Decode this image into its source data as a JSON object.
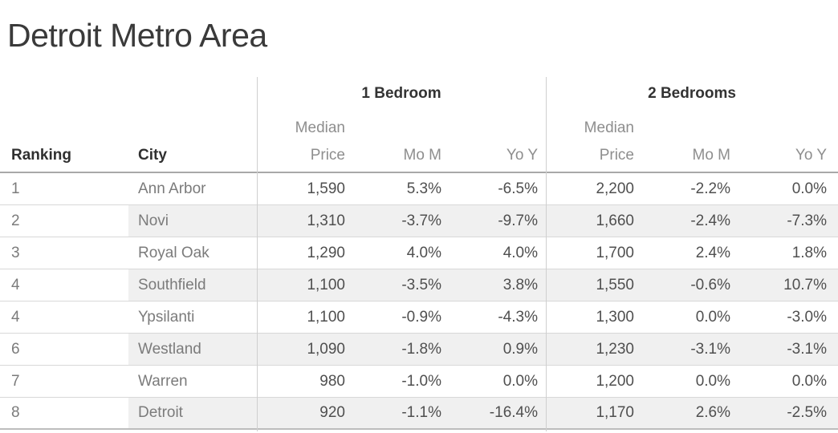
{
  "title": "Detroit Metro Area",
  "colors": {
    "title_text": "#3a3a3a",
    "header_dark_text": "#2f2f2f",
    "header_light_text": "#8e8e8e",
    "label_text": "#7b7b7b",
    "value_text": "#4f4f4f",
    "row_band": "#f0f0f0",
    "header_rule": "#a8a8a8",
    "row_rule": "#d8d8d8",
    "column_divider": "#cfcfcf"
  },
  "table": {
    "group_headers": [
      {
        "label": "1 Bedroom"
      },
      {
        "label": "2 Bedrooms"
      }
    ],
    "row_headers": {
      "ranking": "Ranking",
      "city": "City"
    },
    "sub_headers": {
      "median1": "Median",
      "median2": "Price",
      "mom": "Mo M",
      "yoy": "Yo Y"
    },
    "rows": [
      {
        "ranking": "1",
        "city": "Ann Arbor",
        "br1": {
          "price": "1,590",
          "mom": "5.3%",
          "yoy": "-6.5%"
        },
        "br2": {
          "price": "2,200",
          "mom": "-2.2%",
          "yoy": "0.0%"
        }
      },
      {
        "ranking": "2",
        "city": "Novi",
        "br1": {
          "price": "1,310",
          "mom": "-3.7%",
          "yoy": "-9.7%"
        },
        "br2": {
          "price": "1,660",
          "mom": "-2.4%",
          "yoy": "-7.3%"
        }
      },
      {
        "ranking": "3",
        "city": "Royal Oak",
        "br1": {
          "price": "1,290",
          "mom": "4.0%",
          "yoy": "4.0%"
        },
        "br2": {
          "price": "1,700",
          "mom": "2.4%",
          "yoy": "1.8%"
        }
      },
      {
        "ranking": "4",
        "city": "Southfield",
        "br1": {
          "price": "1,100",
          "mom": "-3.5%",
          "yoy": "3.8%"
        },
        "br2": {
          "price": "1,550",
          "mom": "-0.6%",
          "yoy": "10.7%"
        }
      },
      {
        "ranking": "4",
        "city": "Ypsilanti",
        "br1": {
          "price": "1,100",
          "mom": "-0.9%",
          "yoy": "-4.3%"
        },
        "br2": {
          "price": "1,300",
          "mom": "0.0%",
          "yoy": "-3.0%"
        }
      },
      {
        "ranking": "6",
        "city": "Westland",
        "br1": {
          "price": "1,090",
          "mom": "-1.8%",
          "yoy": "0.9%"
        },
        "br2": {
          "price": "1,230",
          "mom": "-3.1%",
          "yoy": "-3.1%"
        }
      },
      {
        "ranking": "7",
        "city": "Warren",
        "br1": {
          "price": "980",
          "mom": "-1.0%",
          "yoy": "0.0%"
        },
        "br2": {
          "price": "1,200",
          "mom": "0.0%",
          "yoy": "0.0%"
        }
      },
      {
        "ranking": "8",
        "city": "Detroit",
        "br1": {
          "price": "920",
          "mom": "-1.1%",
          "yoy": "-16.4%"
        },
        "br2": {
          "price": "1,170",
          "mom": "2.6%",
          "yoy": "-2.5%"
        }
      }
    ]
  },
  "chart_data": {
    "type": "table",
    "title": "Detroit Metro Area",
    "column_groups": [
      "1 Bedroom",
      "2 Bedrooms"
    ],
    "columns": [
      "Ranking",
      "City",
      "1BR Median Price",
      "1BR Mo M",
      "1BR Yo Y",
      "2BR Median Price",
      "2BR Mo M",
      "2BR Yo Y"
    ],
    "rows": [
      [
        1,
        "Ann Arbor",
        1590,
        "5.3%",
        "-6.5%",
        2200,
        "-2.2%",
        "0.0%"
      ],
      [
        2,
        "Novi",
        1310,
        "-3.7%",
        "-9.7%",
        1660,
        "-2.4%",
        "-7.3%"
      ],
      [
        3,
        "Royal Oak",
        1290,
        "4.0%",
        "4.0%",
        1700,
        "2.4%",
        "1.8%"
      ],
      [
        4,
        "Southfield",
        1100,
        "-3.5%",
        "3.8%",
        1550,
        "-0.6%",
        "10.7%"
      ],
      [
        4,
        "Ypsilanti",
        1100,
        "-0.9%",
        "-4.3%",
        1300,
        "0.0%",
        "-3.0%"
      ],
      [
        6,
        "Westland",
        1090,
        "-1.8%",
        "0.9%",
        1230,
        "-3.1%",
        "-3.1%"
      ],
      [
        7,
        "Warren",
        980,
        "-1.0%",
        "0.0%",
        1200,
        "0.0%",
        "0.0%"
      ],
      [
        8,
        "Detroit",
        920,
        "-1.1%",
        "-16.4%",
        1170,
        "2.6%",
        "-2.5%"
      ]
    ]
  }
}
